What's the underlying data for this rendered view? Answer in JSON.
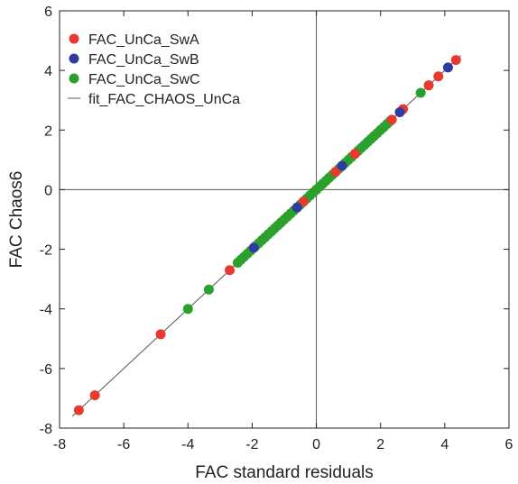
{
  "chart_data": {
    "type": "scatter",
    "title": "",
    "xlabel": "FAC standard residuals",
    "ylabel": "FAC Chaos6",
    "xlim": [
      -8,
      6
    ],
    "ylim": [
      -8,
      6
    ],
    "xticks": [
      "-8",
      "-6",
      "-4",
      "-2",
      "0",
      "2",
      "4",
      "6"
    ],
    "yticks": [
      "-8",
      "-6",
      "-4",
      "-2",
      "0",
      "2",
      "4",
      "6"
    ],
    "grid": false,
    "zero_lines": true,
    "legend_position": "top-left",
    "series": [
      {
        "name": "FAC_UnCa_SwA",
        "kind": "points",
        "color": "#e8392e",
        "x": [
          -7.4,
          -6.9,
          -4.85,
          -2.7,
          2.35,
          2.7,
          3.5,
          3.8,
          4.35,
          1.2,
          0.6,
          -0.4
        ],
        "y": [
          -7.4,
          -6.9,
          -4.85,
          -2.7,
          2.35,
          2.7,
          3.5,
          3.8,
          4.35,
          1.2,
          0.6,
          -0.4
        ]
      },
      {
        "name": "FAC_UnCa_SwB",
        "kind": "points",
        "color": "#2e3ca0",
        "x": [
          -1.95,
          2.6,
          4.1,
          0.8,
          -0.6
        ],
        "y": [
          -1.95,
          2.6,
          4.1,
          0.8,
          -0.6
        ]
      },
      {
        "name": "FAC_UnCa_SwC",
        "kind": "points",
        "color": "#2ca02c",
        "x": [
          -4.0,
          -3.35,
          -2.45,
          -2.35,
          -2.25,
          -2.15,
          -2.05,
          -1.9,
          -1.8,
          -1.7,
          -1.6,
          -1.5,
          -1.4,
          -1.3,
          -1.2,
          -1.1,
          -1.0,
          -0.9,
          -0.8,
          -0.7,
          -0.6,
          -0.5,
          -0.4,
          -0.3,
          -0.2,
          -0.1,
          0.0,
          0.1,
          0.2,
          0.3,
          0.4,
          0.5,
          0.6,
          0.7,
          0.8,
          0.9,
          1.0,
          1.1,
          1.2,
          1.3,
          1.4,
          1.5,
          1.6,
          1.7,
          1.8,
          1.9,
          2.0,
          2.1,
          2.2,
          2.3,
          3.25
        ],
        "y": [
          -4.0,
          -3.35,
          -2.45,
          -2.35,
          -2.25,
          -2.15,
          -2.05,
          -1.9,
          -1.8,
          -1.7,
          -1.6,
          -1.5,
          -1.4,
          -1.3,
          -1.2,
          -1.1,
          -1.0,
          -0.9,
          -0.8,
          -0.7,
          -0.6,
          -0.5,
          -0.4,
          -0.3,
          -0.2,
          -0.1,
          0.0,
          0.1,
          0.2,
          0.3,
          0.4,
          0.5,
          0.6,
          0.7,
          0.8,
          0.9,
          1.0,
          1.1,
          1.2,
          1.3,
          1.4,
          1.5,
          1.6,
          1.7,
          1.8,
          1.9,
          2.0,
          2.1,
          2.2,
          2.3,
          3.25
        ]
      },
      {
        "name": "fit_FAC_CHAOS_UnCa",
        "kind": "line",
        "color": "#555555",
        "x": [
          -7.6,
          4.5
        ],
        "y": [
          -7.6,
          4.5
        ]
      }
    ]
  }
}
